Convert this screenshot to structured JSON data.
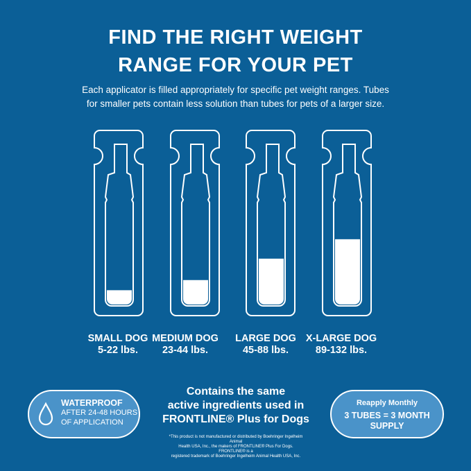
{
  "header": {
    "title_line1": "FIND THE RIGHT WEIGHT",
    "title_line2": "RANGE FOR YOUR PET",
    "subtitle_line1": "Each applicator is filled appropriately for specific pet weight ranges. Tubes",
    "subtitle_line2": "for smaller pets contain less solution than tubes for pets of a larger size."
  },
  "tubes": [
    {
      "name": "SMALL DOG",
      "range": "5-22 lbs.",
      "fill": 0.14
    },
    {
      "name": "MEDIUM DOG",
      "range": "23-44 lbs.",
      "fill": 0.24
    },
    {
      "name": "LARGE DOG",
      "range": "45-88 lbs.",
      "fill": 0.45
    },
    {
      "name": "X-LARGE DOG",
      "range": "89-132 lbs.",
      "fill": 0.64
    }
  ],
  "waterproof": {
    "icon": "water-drop-icon",
    "title": "WATERPROOF",
    "line1": "AFTER 24-48 HOURS",
    "line2": "OF APPLICATION"
  },
  "center": {
    "line1": "Contains the same",
    "line2": "active ingredients used in",
    "line3": "FRONTLINE® Plus for Dogs",
    "fine1": "*This product is not manufactured or distributed by Boehringer Ingelheim Animal",
    "fine2": "Health USA, Inc., the makers of FRONTLINE® Plus For Dogs. FRONTLINE® is a",
    "fine3": "registered trademark of Boehringer Ingelheim Animal Health USA, Inc."
  },
  "reapply": {
    "title": "Reapply Monthly",
    "line1": "3 TUBES = 3 MONTH",
    "line2": "SUPPLY"
  },
  "colors": {
    "background": "#0b5f97",
    "pill": "#4a93c9"
  }
}
